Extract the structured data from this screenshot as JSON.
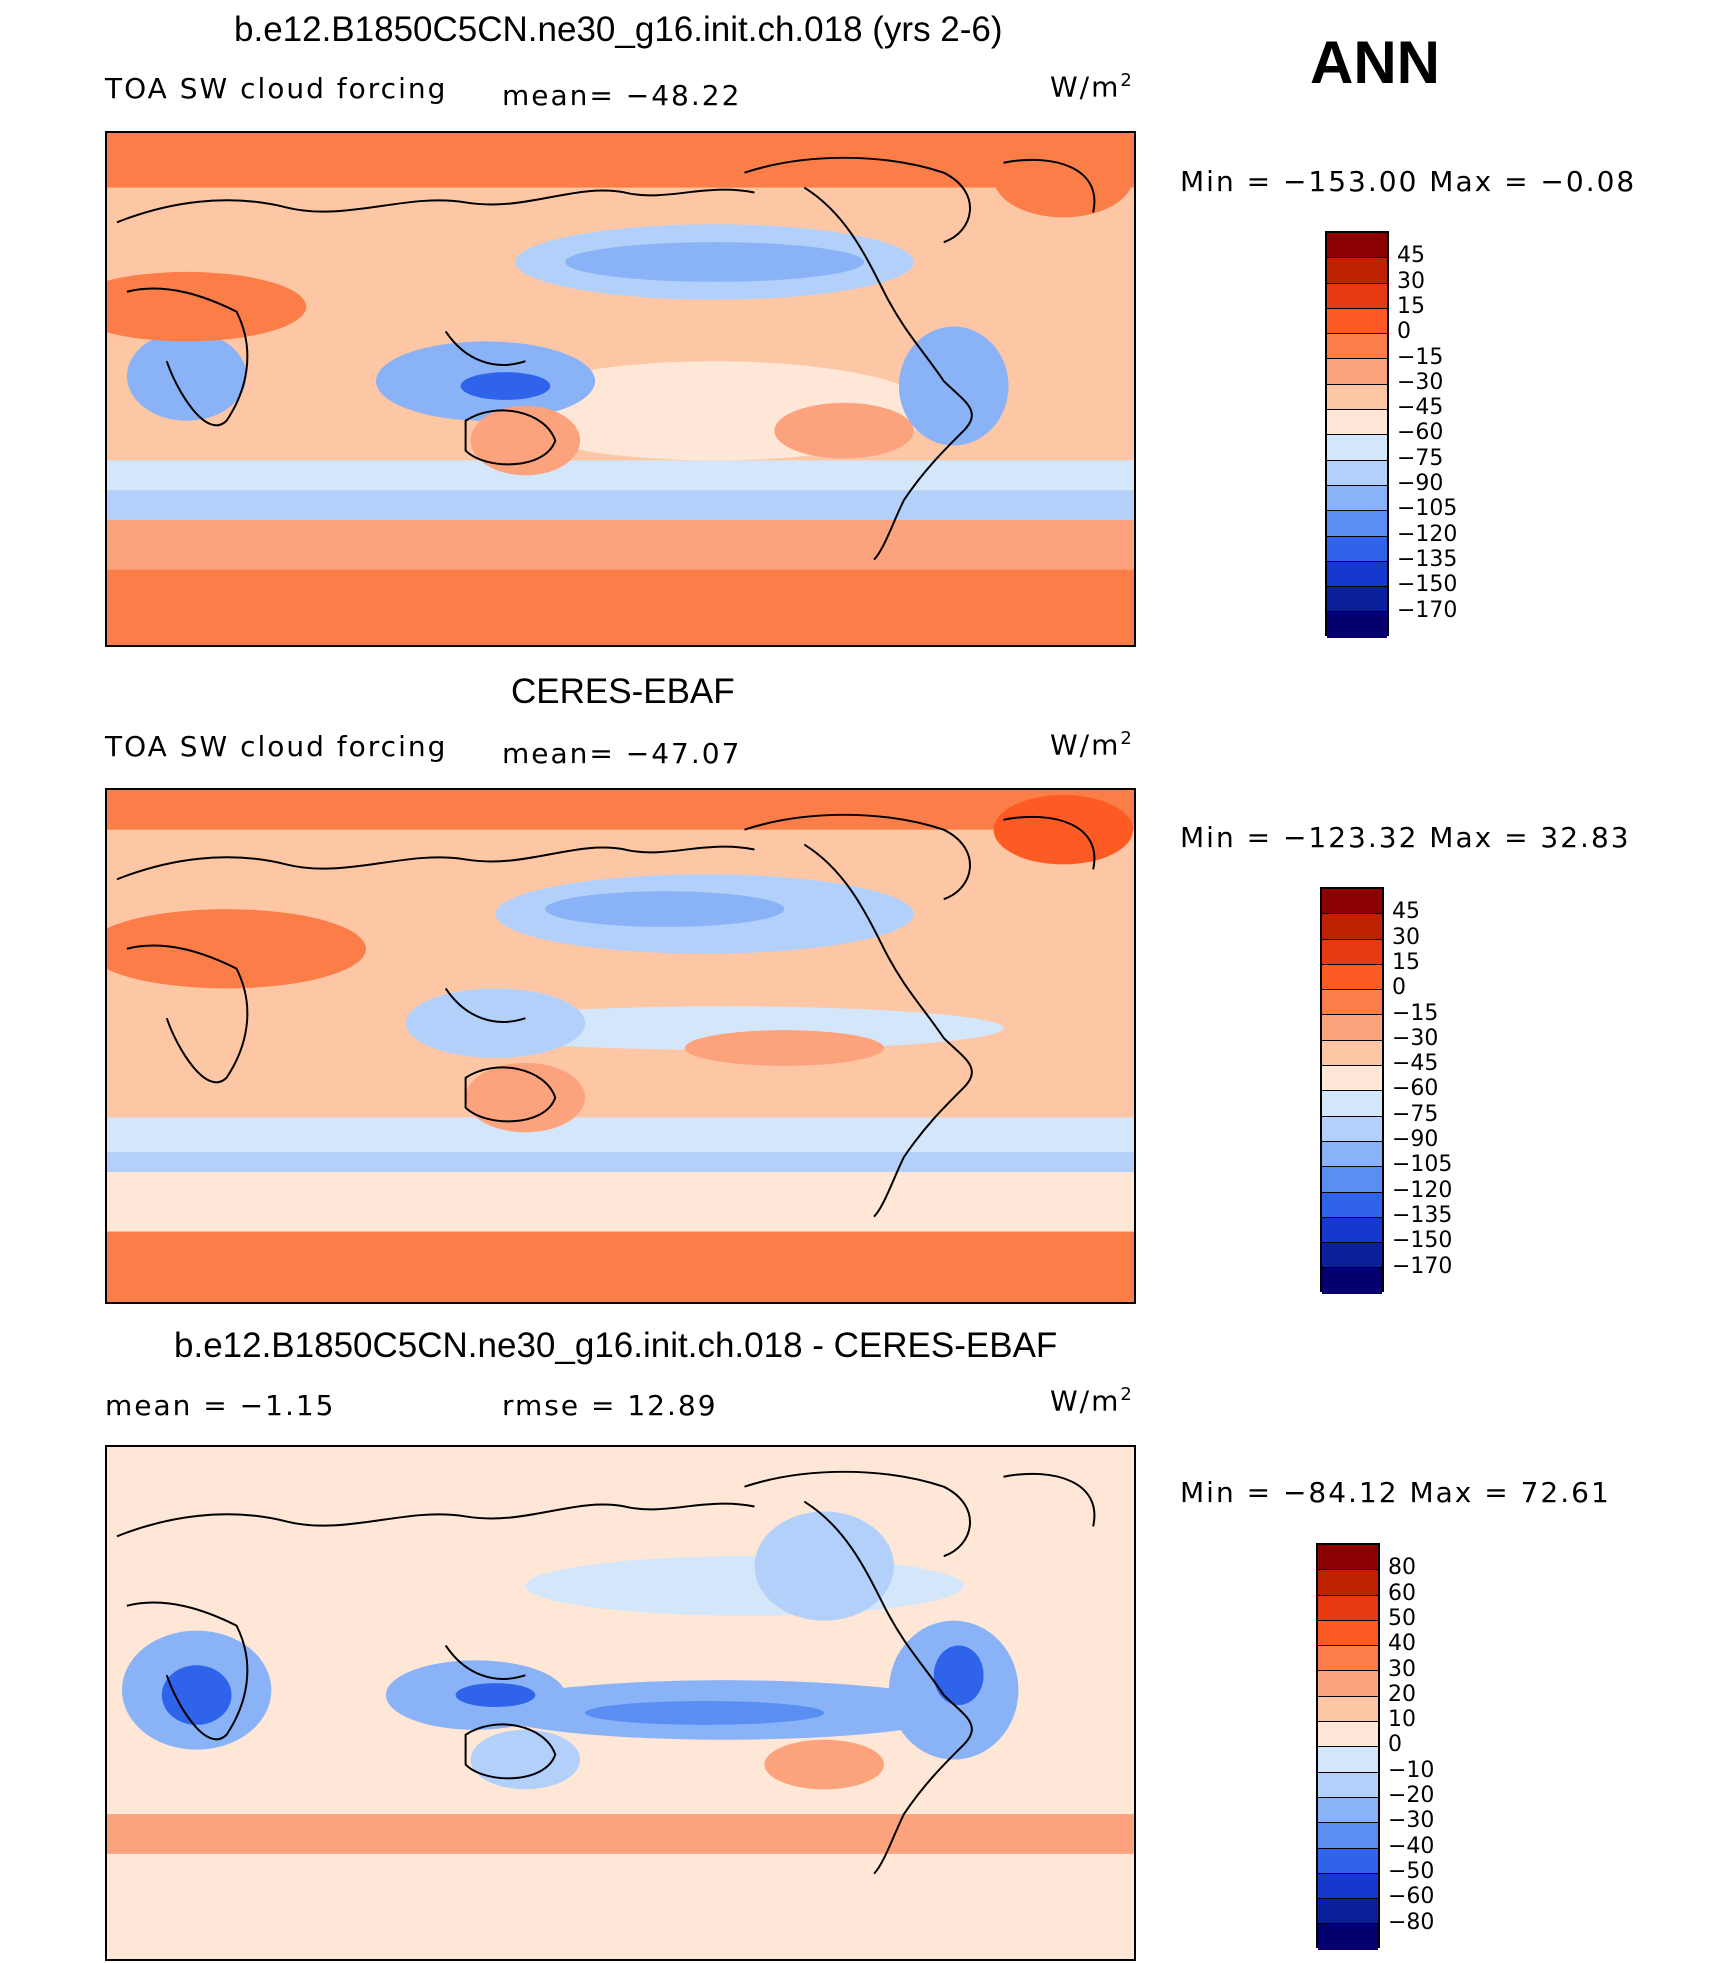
{
  "season": "ANN",
  "panels": [
    {
      "title": "b.e12.B1850C5CN.ne30_g16.init.ch.018 (yrs 2-6)",
      "left_label": "TOA SW cloud forcing",
      "center_label": "mean= −48.22",
      "units": "W/m",
      "units_exp": "2",
      "minmax": "Min = −153.00 Max =   −0.08",
      "colorbar": {
        "labels": [
          "45",
          "30",
          "15",
          "0",
          "−15",
          "−30",
          "−45",
          "−60",
          "−75",
          "−90",
          "−105",
          "−120",
          "−135",
          "−150",
          "−170"
        ],
        "colors": [
          "#8b0000",
          "#bf2200",
          "#e63a12",
          "#fe5a24",
          "#fb7e48",
          "#fca27c",
          "#fdc7a6",
          "#fee7d6",
          "#d4e6fa",
          "#b3d0fb",
          "#8ab3f7",
          "#5a8ef2",
          "#2e63ea",
          "#1439cc",
          "#0b1f9c",
          "#05006d"
        ]
      }
    },
    {
      "title": "CERES-EBAF",
      "left_label": "TOA SW cloud forcing",
      "center_label": "mean= −47.07",
      "units": "W/m",
      "units_exp": "2",
      "minmax": "Min = −123.32 Max =   32.83",
      "colorbar": {
        "labels": [
          "45",
          "30",
          "15",
          "0",
          "−15",
          "−30",
          "−45",
          "−60",
          "−75",
          "−90",
          "−105",
          "−120",
          "−135",
          "−150",
          "−170"
        ],
        "colors": [
          "#8b0000",
          "#bf2200",
          "#e63a12",
          "#fe5a24",
          "#fb7e48",
          "#fca27c",
          "#fdc7a6",
          "#fee7d6",
          "#d4e6fa",
          "#b3d0fb",
          "#8ab3f7",
          "#5a8ef2",
          "#2e63ea",
          "#1439cc",
          "#0b1f9c",
          "#05006d"
        ]
      }
    },
    {
      "title": "b.e12.B1850C5CN.ne30_g16.init.ch.018 - CERES-EBAF",
      "left_label": "mean =   −1.15",
      "center_label": "rmse =   12.89",
      "units": "W/m",
      "units_exp": "2",
      "minmax": "Min = −84.12 Max =   72.61",
      "colorbar": {
        "labels": [
          "80",
          "60",
          "50",
          "40",
          "30",
          "20",
          "10",
          "0",
          "−10",
          "−20",
          "−30",
          "−40",
          "−50",
          "−60",
          "−80"
        ],
        "colors": [
          "#8b0000",
          "#bf2200",
          "#e63a12",
          "#fe5a24",
          "#fb7e48",
          "#fca27c",
          "#fdc7a6",
          "#fee7d6",
          "#d4e6fa",
          "#b3d0fb",
          "#8ab3f7",
          "#5a8ef2",
          "#2e63ea",
          "#1439cc",
          "#0b1f9c",
          "#05006d"
        ]
      }
    }
  ]
}
